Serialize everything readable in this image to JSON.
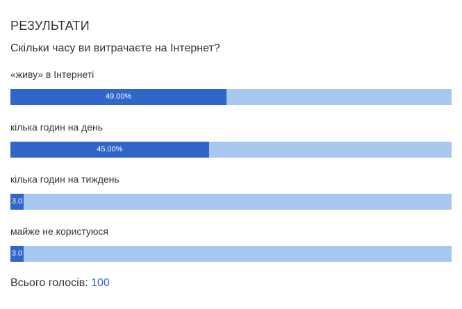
{
  "poll": {
    "title": "РЕЗУЛЬТАТИ",
    "question": "Скільки часу ви витрачаєте на Інтернет?",
    "answers": [
      {
        "label": "«живу» в Інтернеті",
        "percent": 49.0,
        "display": "49.00%"
      },
      {
        "label": "кілька годин на день",
        "percent": 45.0,
        "display": "45.00%"
      },
      {
        "label": "кілька годин на тиждень",
        "percent": 3.0,
        "display": "3.0"
      },
      {
        "label": "майже не користуюся",
        "percent": 3.0,
        "display": "3.0"
      }
    ],
    "total_label": "Всього голосів:",
    "total_count": "100"
  },
  "colors": {
    "bar_fill": "#3065c9",
    "bar_track": "#a6c8f0",
    "text": "#333333"
  }
}
